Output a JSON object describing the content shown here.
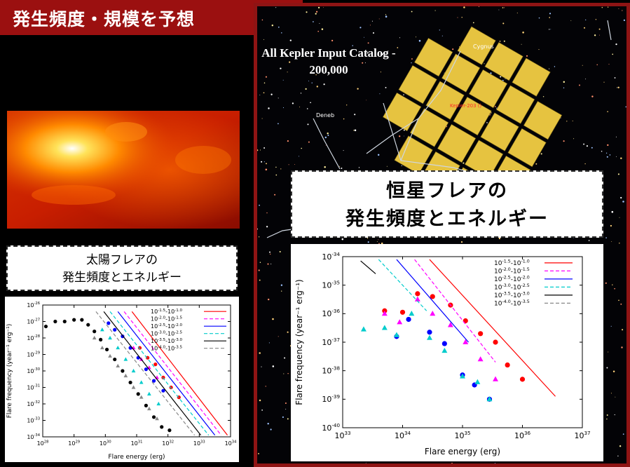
{
  "slide": {
    "title": "発生頻度・規模を予想",
    "colors": {
      "title_bar": "#9b1010",
      "frame": "#8f1414",
      "background": "#000000"
    }
  },
  "kepler_image": {
    "caption_line1": "All Kepler Input Catalog -",
    "caption_line2": "200,000",
    "labels": {
      "cygnus": "Cygnus",
      "deneb": "Deneb",
      "target": "Kepler-203 ()"
    }
  },
  "solar_label": {
    "line1": "太陽フレアの",
    "line2": "発生頻度とエネルギー"
  },
  "stellar_label": {
    "line1": "恒星フレアの",
    "line2": "発生頻度とエネルギー"
  },
  "chart_data": [
    {
      "id": "solar",
      "type": "scatter",
      "xlabel": "Flare energy (erg)",
      "ylabel": "Flare frequency (year⁻¹ erg⁻¹)",
      "x_log_range": [
        28,
        34
      ],
      "y_log_range": [
        -34,
        -26
      ],
      "x_ticks": [
        28,
        29,
        30,
        31,
        32,
        33,
        34
      ],
      "y_ticks": [
        -26,
        -27,
        -28,
        -29,
        -30,
        -31,
        -32,
        -33,
        -34
      ],
      "legend_placement": "top-right",
      "series": [
        {
          "name": "10^-1.5 - 10^-1.0",
          "color": "#ff0000",
          "dash": "solid",
          "line": [
            [
              30.85,
              -26.4
            ],
            [
              33.9,
              -33.9
            ]
          ],
          "marker": "circle",
          "points": [
            [
              31.1,
              -28.6
            ],
            [
              31.35,
              -29.2
            ],
            [
              31.6,
              -29.6
            ],
            [
              31.85,
              -30.4
            ],
            [
              32.1,
              -31.0
            ],
            [
              32.35,
              -31.6
            ]
          ]
        },
        {
          "name": "10^-2.0 - 10^-1.5",
          "color": "#ff00ff",
          "dash": "dash",
          "line": [
            [
              30.6,
              -26.4
            ],
            [
              33.7,
              -33.9
            ]
          ],
          "marker": "triangle",
          "points": [
            [
              30.9,
              -28.6
            ],
            [
              31.15,
              -29.3
            ],
            [
              31.4,
              -29.8
            ],
            [
              31.65,
              -30.4
            ]
          ]
        },
        {
          "name": "10^-2.5 - 10^-2.0",
          "color": "#0000ff",
          "dash": "solid",
          "line": [
            [
              30.4,
              -26.4
            ],
            [
              33.5,
              -33.9
            ]
          ],
          "marker": "circle",
          "points": [
            [
              30.1,
              -27.1
            ],
            [
              30.3,
              -27.5
            ],
            [
              30.55,
              -27.9
            ],
            [
              30.8,
              -28.6
            ],
            [
              31.05,
              -29.2
            ],
            [
              31.3,
              -29.9
            ],
            [
              31.55,
              -30.6
            ],
            [
              31.85,
              -31.2
            ]
          ]
        },
        {
          "name": "10^-3.0 - 10^-2.5",
          "color": "#00cccc",
          "dash": "dash",
          "line": [
            [
              30.15,
              -26.4
            ],
            [
              33.3,
              -33.9
            ]
          ],
          "marker": "triangle",
          "points": [
            [
              29.9,
              -27.5
            ],
            [
              30.15,
              -28.0
            ],
            [
              30.4,
              -28.6
            ],
            [
              30.65,
              -29.3
            ],
            [
              30.9,
              -30.0
            ],
            [
              31.15,
              -30.7
            ],
            [
              31.4,
              -31.4
            ],
            [
              31.7,
              -32.0
            ]
          ]
        },
        {
          "name": "10^-3.5 - 10^-3.0",
          "color": "#000000",
          "dash": "solid",
          "line": [
            [
              29.95,
              -26.4
            ],
            [
              33.05,
              -33.9
            ]
          ],
          "marker": "circle",
          "points": [
            [
              28.1,
              -27.3
            ],
            [
              28.4,
              -27.0
            ],
            [
              28.7,
              -27.0
            ],
            [
              29.0,
              -26.9
            ],
            [
              29.25,
              -26.9
            ],
            [
              29.45,
              -27.2
            ],
            [
              29.65,
              -27.6
            ],
            [
              29.85,
              -28.1
            ],
            [
              30.05,
              -28.7
            ],
            [
              30.3,
              -29.3
            ],
            [
              30.55,
              -30.0
            ],
            [
              30.8,
              -30.7
            ],
            [
              31.05,
              -31.4
            ],
            [
              31.3,
              -32.1
            ],
            [
              31.55,
              -32.8
            ],
            [
              31.8,
              -33.4
            ],
            [
              32.05,
              -33.6
            ]
          ]
        },
        {
          "name": "10^-4.0 - 10^-3.5",
          "color": "#888888",
          "dash": "dash",
          "line": [
            [
              29.7,
              -26.4
            ],
            [
              32.85,
              -33.9
            ]
          ],
          "marker": "triangle",
          "points": [
            [
              29.65,
              -28.0
            ],
            [
              29.9,
              -28.6
            ],
            [
              30.15,
              -29.1
            ],
            [
              30.4,
              -29.7
            ],
            [
              30.65,
              -30.3
            ],
            [
              30.9,
              -31.0
            ],
            [
              31.15,
              -31.6
            ],
            [
              31.4,
              -32.3
            ],
            [
              31.65,
              -32.9
            ]
          ]
        }
      ]
    },
    {
      "id": "stellar",
      "type": "scatter",
      "xlabel": "Flare energy (erg)",
      "ylabel": "Flare frequency (year⁻¹ erg⁻¹)",
      "x_log_range": [
        33,
        37
      ],
      "y_log_range": [
        -40,
        -34
      ],
      "x_ticks": [
        33,
        34,
        35,
        36,
        37
      ],
      "y_ticks": [
        -34,
        -35,
        -36,
        -37,
        -38,
        -39,
        -40
      ],
      "legend_placement": "top-right",
      "series": [
        {
          "name": "10^-1.5 - 10^-1.0",
          "color": "#ff0000",
          "dash": "solid",
          "line": [
            [
              34.45,
              -34.1
            ],
            [
              36.55,
              -38.9
            ]
          ],
          "marker": "circle",
          "points": [
            [
              33.7,
              -35.9
            ],
            [
              34.0,
              -35.95
            ],
            [
              34.25,
              -35.3
            ],
            [
              34.5,
              -35.4
            ],
            [
              34.8,
              -35.7
            ],
            [
              35.05,
              -36.25
            ],
            [
              35.3,
              -36.7
            ],
            [
              35.55,
              -37.0
            ],
            [
              35.75,
              -37.8
            ],
            [
              36.0,
              -38.3
            ]
          ]
        },
        {
          "name": "10^-2.0 - 10^-1.5",
          "color": "#ff00ff",
          "dash": "dash",
          "line": [
            [
              34.2,
              -34.1
            ],
            [
              35.55,
              -37.7
            ]
          ],
          "marker": "triangle",
          "points": [
            [
              33.7,
              -36.0
            ],
            [
              33.95,
              -36.3
            ],
            [
              34.25,
              -35.5
            ],
            [
              34.5,
              -36.0
            ],
            [
              34.8,
              -36.4
            ],
            [
              35.05,
              -37.0
            ],
            [
              35.3,
              -37.6
            ],
            [
              35.55,
              -38.3
            ]
          ]
        },
        {
          "name": "10^-2.5 - 10^-2.0",
          "color": "#0000ff",
          "dash": "solid",
          "line": [
            [
              33.9,
              -34.1
            ],
            [
              35.1,
              -37.0
            ]
          ],
          "marker": "circle",
          "points": [
            [
              33.9,
              -36.8
            ],
            [
              34.1,
              -36.2
            ],
            [
              34.45,
              -36.65
            ],
            [
              34.7,
              -37.05
            ],
            [
              35.0,
              -38.15
            ],
            [
              35.2,
              -38.5
            ],
            [
              35.45,
              -39.0
            ]
          ]
        },
        {
          "name": "10^-3.0 - 10^-2.5",
          "color": "#00cccc",
          "dash": "dash",
          "line": [
            [
              33.6,
              -34.1
            ],
            [
              34.4,
              -35.9
            ]
          ],
          "marker": "triangle",
          "points": [
            [
              33.35,
              -36.55
            ],
            [
              33.7,
              -36.5
            ],
            [
              33.9,
              -36.75
            ],
            [
              34.15,
              -36.0
            ],
            [
              34.45,
              -36.85
            ],
            [
              34.7,
              -37.3
            ],
            [
              35.0,
              -38.2
            ],
            [
              35.25,
              -38.4
            ],
            [
              35.45,
              -39.0
            ]
          ]
        },
        {
          "name": "10^-3.5 - 10^-3.0",
          "color": "#000000",
          "dash": "solid",
          "line": [
            [
              33.3,
              -34.15
            ],
            [
              33.55,
              -34.6
            ]
          ],
          "marker": "circle",
          "points": []
        },
        {
          "name": "10^-4.0 - 10^-3.5",
          "color": "#888888",
          "dash": "dash",
          "line": [],
          "marker": "triangle",
          "points": []
        }
      ]
    }
  ]
}
